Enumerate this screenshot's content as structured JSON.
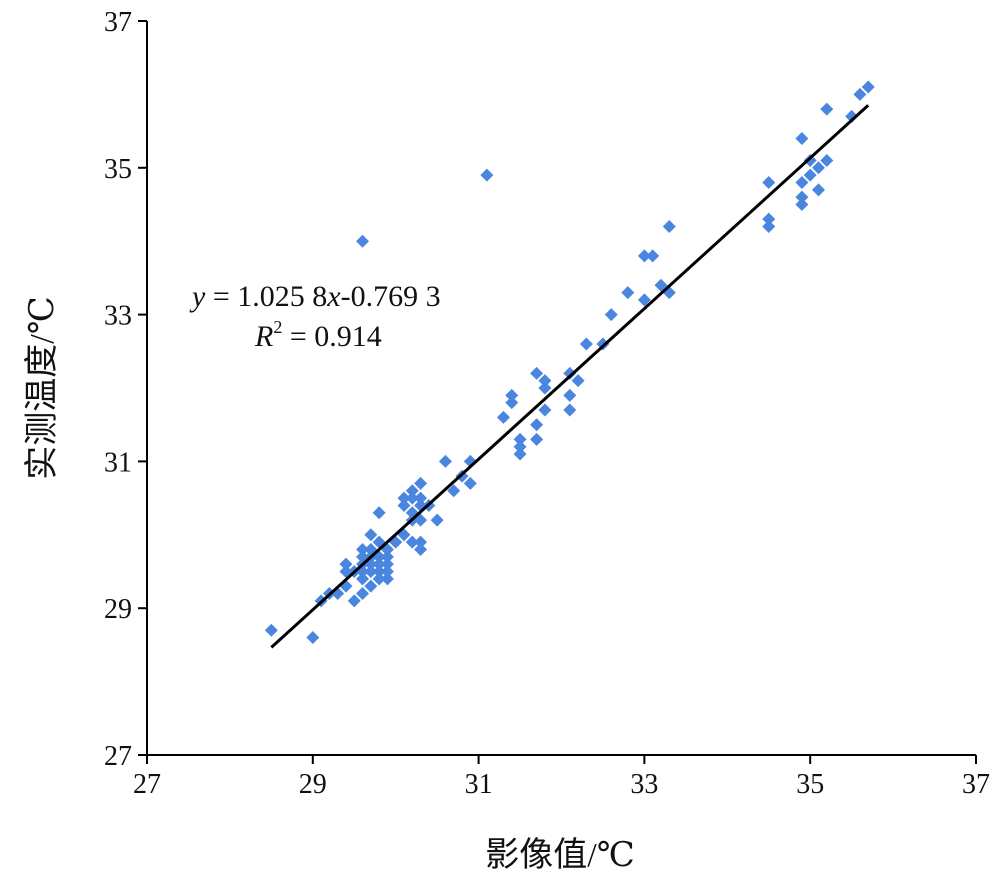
{
  "chart_data": {
    "type": "scatter",
    "xlabel": "影像值/℃",
    "ylabel": "实测温度/℃",
    "xlim": [
      27,
      37
    ],
    "ylim": [
      27,
      37
    ],
    "xticks": [
      "27",
      "29",
      "31",
      "33",
      "35",
      "37"
    ],
    "yticks": [
      "27",
      "29",
      "31",
      "33",
      "35",
      "37"
    ],
    "grid": false,
    "marker_color": "#4a86e0",
    "line_color": "#000000",
    "regression": {
      "slope": 1.0258,
      "intercept": -0.7693,
      "x_range": [
        28.5,
        35.7
      ],
      "equation": {
        "y": "y",
        "eq1": " = 1.025 8",
        "x": "x",
        "eq2": "-0.769 3"
      },
      "r2": {
        "R": "R",
        "sup": "2",
        "value": " = 0.914"
      }
    },
    "points": [
      [
        28.5,
        28.7
      ],
      [
        29.0,
        28.6
      ],
      [
        29.1,
        29.1
      ],
      [
        29.2,
        29.2
      ],
      [
        29.3,
        29.2
      ],
      [
        29.4,
        29.3
      ],
      [
        29.4,
        29.5
      ],
      [
        29.4,
        29.6
      ],
      [
        29.5,
        29.5
      ],
      [
        29.5,
        29.1
      ],
      [
        29.6,
        29.2
      ],
      [
        29.6,
        29.4
      ],
      [
        29.6,
        29.5
      ],
      [
        29.6,
        29.6
      ],
      [
        29.6,
        29.7
      ],
      [
        29.6,
        29.8
      ],
      [
        29.7,
        29.3
      ],
      [
        29.7,
        29.5
      ],
      [
        29.7,
        29.6
      ],
      [
        29.7,
        29.7
      ],
      [
        29.7,
        29.8
      ],
      [
        29.7,
        30.0
      ],
      [
        29.8,
        29.4
      ],
      [
        29.8,
        29.5
      ],
      [
        29.8,
        29.6
      ],
      [
        29.8,
        29.7
      ],
      [
        29.8,
        29.9
      ],
      [
        29.8,
        30.3
      ],
      [
        29.9,
        29.4
      ],
      [
        29.9,
        29.5
      ],
      [
        29.9,
        29.6
      ],
      [
        29.9,
        29.7
      ],
      [
        29.9,
        29.8
      ],
      [
        30.0,
        29.9
      ],
      [
        30.1,
        30.0
      ],
      [
        30.1,
        30.4
      ],
      [
        30.1,
        30.5
      ],
      [
        30.2,
        29.9
      ],
      [
        30.2,
        30.2
      ],
      [
        30.2,
        30.3
      ],
      [
        30.2,
        30.5
      ],
      [
        30.2,
        30.6
      ],
      [
        30.3,
        29.8
      ],
      [
        30.3,
        29.9
      ],
      [
        30.3,
        30.2
      ],
      [
        30.3,
        30.4
      ],
      [
        30.3,
        30.5
      ],
      [
        30.3,
        30.7
      ],
      [
        30.4,
        30.4
      ],
      [
        30.5,
        30.2
      ],
      [
        30.6,
        31.0
      ],
      [
        30.7,
        30.6
      ],
      [
        30.8,
        30.8
      ],
      [
        30.9,
        30.7
      ],
      [
        30.9,
        31.0
      ],
      [
        29.6,
        34.0
      ],
      [
        31.1,
        34.9
      ],
      [
        31.3,
        31.6
      ],
      [
        31.4,
        31.8
      ],
      [
        31.4,
        31.9
      ],
      [
        31.5,
        31.1
      ],
      [
        31.5,
        31.2
      ],
      [
        31.5,
        31.3
      ],
      [
        31.7,
        31.3
      ],
      [
        31.7,
        31.5
      ],
      [
        31.7,
        32.2
      ],
      [
        31.8,
        31.7
      ],
      [
        31.8,
        32.0
      ],
      [
        31.8,
        32.1
      ],
      [
        32.1,
        31.7
      ],
      [
        32.1,
        31.9
      ],
      [
        32.1,
        32.2
      ],
      [
        32.2,
        32.1
      ],
      [
        32.3,
        32.6
      ],
      [
        32.5,
        32.6
      ],
      [
        32.6,
        33.0
      ],
      [
        32.8,
        33.3
      ],
      [
        33.0,
        33.2
      ],
      [
        33.0,
        33.8
      ],
      [
        33.1,
        33.8
      ],
      [
        33.2,
        33.4
      ],
      [
        33.3,
        33.3
      ],
      [
        33.3,
        34.2
      ],
      [
        34.5,
        34.2
      ],
      [
        34.5,
        34.3
      ],
      [
        34.5,
        34.8
      ],
      [
        34.9,
        34.5
      ],
      [
        34.9,
        34.6
      ],
      [
        34.9,
        34.8
      ],
      [
        34.9,
        35.4
      ],
      [
        35.0,
        34.9
      ],
      [
        35.0,
        35.1
      ],
      [
        35.1,
        34.7
      ],
      [
        35.1,
        35.0
      ],
      [
        35.2,
        35.1
      ],
      [
        35.2,
        35.8
      ],
      [
        35.5,
        35.7
      ],
      [
        35.6,
        36.0
      ],
      [
        35.7,
        36.1
      ]
    ]
  }
}
